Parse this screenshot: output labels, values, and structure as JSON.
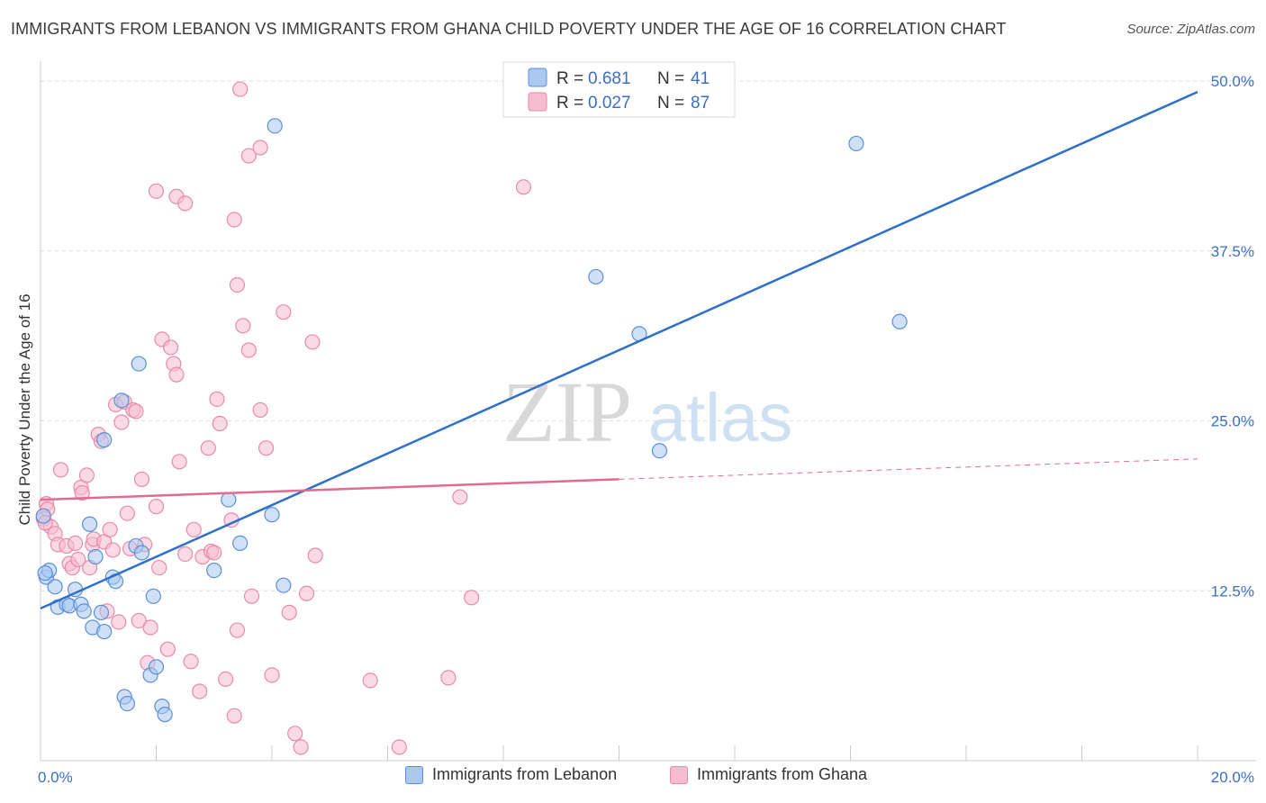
{
  "header": {
    "title": "IMMIGRANTS FROM LEBANON VS IMMIGRANTS FROM GHANA CHILD POVERTY UNDER THE AGE OF 16 CORRELATION CHART",
    "source": "Source: ZipAtlas.com"
  },
  "watermark": {
    "zip": "ZIP",
    "atlas": "atlas"
  },
  "chart_data": {
    "type": "scatter",
    "title": "IMMIGRANTS FROM LEBANON VS IMMIGRANTS FROM GHANA CHILD POVERTY UNDER THE AGE OF 16 CORRELATION CHART",
    "xlabel": "",
    "ylabel": "Child Poverty Under the Age of 16",
    "xlim": [
      0,
      20
    ],
    "ylim": [
      0,
      50
    ],
    "x_tick_labels": {
      "min": "0.0%",
      "max": "20.0%"
    },
    "y_ticks": [
      12.5,
      25.0,
      37.5,
      50.0
    ],
    "y_tick_labels": [
      "12.5%",
      "25.0%",
      "37.5%",
      "50.0%"
    ],
    "grid": true,
    "legend_position": "top-center",
    "colors": {
      "lebanon_fill": "#aac8f0",
      "lebanon_stroke": "#5a8fd8",
      "lebanon_line": "#2e6fca",
      "ghana_fill": "#f7bcd0",
      "ghana_stroke": "#e88aa8",
      "ghana_line": "#e26b93",
      "value_text": "#3a6fc8"
    },
    "series": [
      {
        "name": "Immigrants from Lebanon",
        "r": "0.681",
        "n": "41",
        "trend": {
          "x0": 0.0,
          "y0": 11.2,
          "x1": 20.0,
          "y1": 49.2,
          "dashed_from": null
        },
        "points": [
          [
            0.1,
            13.5
          ],
          [
            0.15,
            14.0
          ],
          [
            0.25,
            12.8
          ],
          [
            0.3,
            11.3
          ],
          [
            0.45,
            11.5
          ],
          [
            0.5,
            11.4
          ],
          [
            0.6,
            12.6
          ],
          [
            0.7,
            11.5
          ],
          [
            0.75,
            11.0
          ],
          [
            0.85,
            17.4
          ],
          [
            0.9,
            9.8
          ],
          [
            0.95,
            15.0
          ],
          [
            1.1,
            9.5
          ],
          [
            1.05,
            10.9
          ],
          [
            1.25,
            13.5
          ],
          [
            1.3,
            13.2
          ],
          [
            1.4,
            26.5
          ],
          [
            1.45,
            4.7
          ],
          [
            1.5,
            4.2
          ],
          [
            1.1,
            23.6
          ],
          [
            1.7,
            29.2
          ],
          [
            1.65,
            15.8
          ],
          [
            1.75,
            15.3
          ],
          [
            1.9,
            6.3
          ],
          [
            1.95,
            12.1
          ],
          [
            2.0,
            6.9
          ],
          [
            2.1,
            4.0
          ],
          [
            2.15,
            3.4
          ],
          [
            3.0,
            14.0
          ],
          [
            3.25,
            19.2
          ],
          [
            3.45,
            16.0
          ],
          [
            4.05,
            46.7
          ],
          [
            4.0,
            18.1
          ],
          [
            4.2,
            12.9
          ],
          [
            9.6,
            35.6
          ],
          [
            10.35,
            31.4
          ],
          [
            10.7,
            22.8
          ],
          [
            14.1,
            45.4
          ],
          [
            14.85,
            32.3
          ],
          [
            0.05,
            18.0
          ],
          [
            0.08,
            13.8
          ]
        ]
      },
      {
        "name": "Immigrants from Ghana",
        "r": "0.027",
        "n": "87",
        "trend": {
          "x0": 0.0,
          "y0": 19.2,
          "x1": 10.0,
          "y1": 20.7,
          "dashed_from": 10.0,
          "dashed_to": 20.0,
          "dashed_y": 22.2
        },
        "points": [
          [
            0.05,
            17.8
          ],
          [
            0.1,
            18.9
          ],
          [
            0.12,
            18.5
          ],
          [
            0.18,
            17.2
          ],
          [
            0.25,
            16.7
          ],
          [
            0.3,
            15.9
          ],
          [
            0.35,
            21.4
          ],
          [
            0.45,
            15.8
          ],
          [
            0.5,
            14.5
          ],
          [
            0.55,
            14.2
          ],
          [
            0.6,
            16.0
          ],
          [
            0.65,
            14.8
          ],
          [
            0.7,
            20.1
          ],
          [
            0.72,
            19.7
          ],
          [
            0.8,
            21.0
          ],
          [
            0.85,
            14.2
          ],
          [
            0.9,
            15.9
          ],
          [
            0.92,
            16.3
          ],
          [
            1.0,
            24.0
          ],
          [
            1.05,
            23.5
          ],
          [
            1.1,
            16.1
          ],
          [
            1.15,
            11.0
          ],
          [
            1.2,
            17.0
          ],
          [
            1.25,
            15.5
          ],
          [
            1.3,
            26.2
          ],
          [
            1.35,
            10.2
          ],
          [
            1.4,
            24.9
          ],
          [
            1.45,
            26.4
          ],
          [
            1.5,
            18.2
          ],
          [
            1.55,
            15.6
          ],
          [
            1.6,
            25.8
          ],
          [
            1.65,
            25.7
          ],
          [
            1.7,
            10.3
          ],
          [
            1.75,
            20.7
          ],
          [
            1.8,
            15.9
          ],
          [
            1.85,
            7.2
          ],
          [
            1.9,
            9.8
          ],
          [
            2.0,
            18.7
          ],
          [
            2.05,
            14.2
          ],
          [
            2.1,
            31.0
          ],
          [
            2.2,
            8.2
          ],
          [
            2.25,
            30.4
          ],
          [
            2.3,
            29.2
          ],
          [
            2.35,
            28.4
          ],
          [
            2.4,
            22.0
          ],
          [
            2.5,
            15.2
          ],
          [
            2.6,
            7.3
          ],
          [
            2.65,
            17.0
          ],
          [
            2.75,
            5.1
          ],
          [
            2.8,
            15.0
          ],
          [
            2.9,
            23.0
          ],
          [
            2.95,
            15.4
          ],
          [
            3.0,
            15.3
          ],
          [
            3.05,
            26.6
          ],
          [
            3.1,
            24.8
          ],
          [
            3.2,
            6.0
          ],
          [
            3.3,
            17.7
          ],
          [
            3.35,
            3.3
          ],
          [
            3.4,
            9.6
          ],
          [
            3.5,
            32.0
          ],
          [
            3.6,
            30.2
          ],
          [
            3.65,
            12.1
          ],
          [
            3.8,
            25.8
          ],
          [
            3.9,
            23.0
          ],
          [
            4.0,
            6.3
          ],
          [
            4.2,
            33.0
          ],
          [
            4.3,
            10.9
          ],
          [
            4.4,
            2.0
          ],
          [
            4.5,
            1.0
          ],
          [
            4.6,
            12.3
          ],
          [
            4.7,
            30.8
          ],
          [
            4.75,
            15.1
          ],
          [
            3.4,
            35.0
          ],
          [
            2.35,
            41.5
          ],
          [
            2.5,
            41.0
          ],
          [
            3.35,
            39.8
          ],
          [
            3.6,
            44.5
          ],
          [
            3.8,
            45.1
          ],
          [
            2.0,
            41.9
          ],
          [
            3.45,
            49.4
          ],
          [
            5.7,
            5.9
          ],
          [
            6.2,
            1.0
          ],
          [
            7.05,
            6.1
          ],
          [
            7.25,
            19.4
          ],
          [
            7.45,
            12.0
          ],
          [
            8.35,
            42.2
          ],
          [
            0.08,
            17.5
          ]
        ]
      }
    ]
  },
  "legend": {
    "r_label": "R =",
    "n_label": "N =",
    "bottom_items": [
      "Immigrants from Lebanon",
      "Immigrants from Ghana"
    ]
  }
}
